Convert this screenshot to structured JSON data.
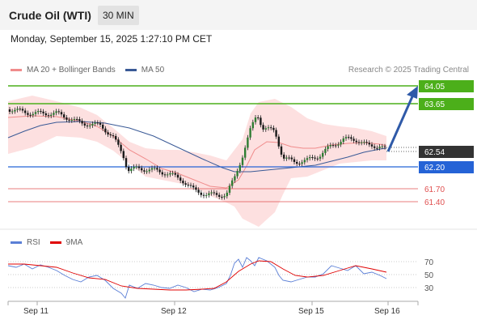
{
  "header": {
    "title": "Crude Oil (WTI)",
    "timeframe": "30 MIN"
  },
  "datetime": "Monday, September 15, 2025 1:27:10 PM CET",
  "legend_price": [
    {
      "label": "MA 20 + Bollinger Bands",
      "color": "#f08c8c"
    },
    {
      "label": "MA 50",
      "color": "#3a5a96"
    }
  ],
  "credit": "Research © 2025 Trading Central",
  "legend_rsi": [
    {
      "label": "RSI",
      "color": "#5b7fd6"
    },
    {
      "label": "9MA",
      "color": "#e00000"
    }
  ],
  "colors": {
    "resistance": "#4caf1a",
    "support": "#2563d6",
    "target": "#e05050",
    "current": "#333333",
    "arrow": "#2f5aa8",
    "band": "#fde0e0"
  },
  "levels": [
    {
      "value": "64.05",
      "type": "resistance"
    },
    {
      "value": "63.65",
      "type": "resistance"
    },
    {
      "value": "62.54",
      "type": "current"
    },
    {
      "value": "62.20",
      "type": "support"
    },
    {
      "value": "61.70",
      "type": "target"
    },
    {
      "value": "61.40",
      "type": "target"
    }
  ],
  "rsi_axis": [
    "70",
    "50",
    "30"
  ],
  "x_axis": [
    "Sep 11",
    "Sep 12",
    "Sep 15",
    "Sep 16"
  ],
  "chart_data": {
    "type": "line",
    "series": [
      {
        "name": "MA 20 + Bollinger Bands"
      },
      {
        "name": "MA 50"
      },
      {
        "name": "RSI"
      },
      {
        "name": "9MA"
      }
    ],
    "y_levels": [
      64.05,
      63.65,
      62.54,
      62.2,
      61.7,
      61.4
    ],
    "rsi_levels": [
      70,
      50,
      30
    ],
    "xlabels": [
      "Sep 11",
      "Sep 12",
      "Sep 15",
      "Sep 16"
    ]
  }
}
